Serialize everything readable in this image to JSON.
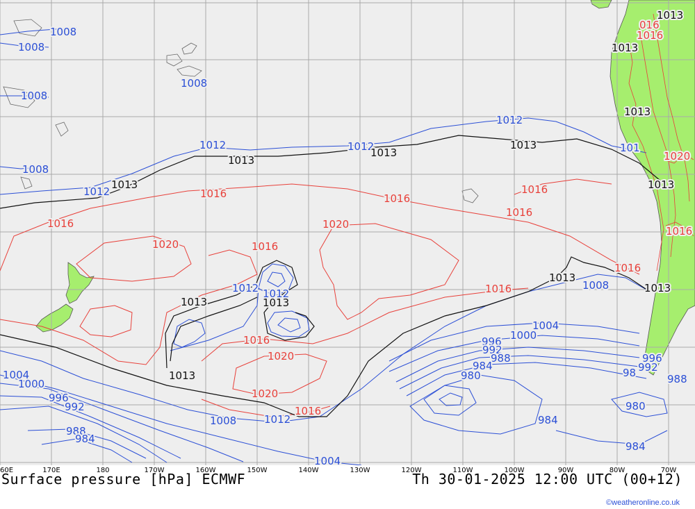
{
  "title": "Surface pressure [hPa] ECMWF",
  "datetime": "Th 30-01-2025 12:00 UTC (00+12)",
  "credit": "©weatheronline.co.uk",
  "colors": {
    "ocean": "#eeeeee",
    "land": "#a6ee6e",
    "grid": "#a9a9a9",
    "low": "#2b4fd6",
    "high": "#e8403a",
    "standard": "#111111"
  },
  "longitudes": [
    "60E",
    "170E",
    "180",
    "170W",
    "160W",
    "150W",
    "140W",
    "130W",
    "120W",
    "110W",
    "100W",
    "90W",
    "80W",
    "70W"
  ],
  "labels": {
    "blue": [
      "1008",
      "1008",
      "1008",
      "1008",
      "1008",
      "1012",
      "1012",
      "1012",
      "1012",
      "101",
      "1012",
      "1012",
      "1008",
      "1004",
      "1000",
      "996",
      "992",
      "988",
      "984",
      "980",
      "98",
      "996",
      "992",
      "988",
      "980",
      "984",
      "984",
      "1004",
      "1000",
      "996",
      "992",
      "988",
      "984",
      "1008",
      "1012",
      "1004"
    ],
    "red": [
      "016",
      "1016",
      "1020",
      "1016",
      "1016",
      "1020",
      "1016",
      "1016",
      "1016",
      "1016",
      "1020",
      "1016",
      "1020",
      "1016",
      "1016",
      "1016",
      "1020",
      "1016"
    ],
    "black": [
      "1013",
      "1013",
      "1013",
      "1013",
      "1013",
      "1013",
      "1013",
      "1013",
      "1013",
      "1013",
      "1013",
      "1013",
      "1013"
    ]
  }
}
